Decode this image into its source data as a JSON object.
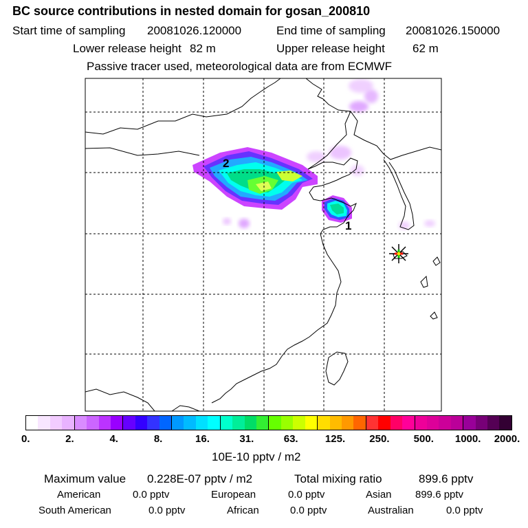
{
  "title": "BC  source contributions in nested domain for gosan_200810",
  "sampling": {
    "start_label": "Start time of sampling",
    "start_value": "20081026.120000",
    "end_label": "End time of sampling",
    "end_value": "20081026.150000"
  },
  "release": {
    "lower_label": "Lower release height",
    "lower_value": "82 m",
    "upper_label": "Upper release height",
    "upper_value": "62 m"
  },
  "tracer_note": "Passive tracer used, meteorological data are from ECMWF",
  "map": {
    "source_labels": [
      "2",
      "1"
    ],
    "receptor_marker": "asterisk-star"
  },
  "colorbar": {
    "tick_labels": [
      "0.",
      "2.",
      "4.",
      "8.",
      "16.",
      "31.",
      "63.",
      "125.",
      "250.",
      "500.",
      "1000.",
      "2000."
    ],
    "colors": [
      "#ffffff",
      "#f8e6ff",
      "#f2ccff",
      "#e9b3ff",
      "#d98cff",
      "#cc66ff",
      "#bb33ff",
      "#9900ff",
      "#6600ff",
      "#3300ff",
      "#3333ff",
      "#0066ff",
      "#0099ff",
      "#00bbff",
      "#00e0ff",
      "#00ffff",
      "#00ffcc",
      "#00ee99",
      "#00dd66",
      "#33ee33",
      "#66ff00",
      "#99ff00",
      "#ccff00",
      "#ffff00",
      "#ffdd00",
      "#ffbb00",
      "#ff9900",
      "#ff6600",
      "#ff3333",
      "#ff0000",
      "#ff0066",
      "#ff0099",
      "#ee0099",
      "#dd0099",
      "#cc0099",
      "#bb0099",
      "#990099",
      "#770077",
      "#550055",
      "#330033"
    ],
    "unit": "10E-10 pptv / m2"
  },
  "summary": {
    "max_label": "Maximum value",
    "max_value": "0.228E-07 pptv / m2",
    "total_label": "Total mixing ratio",
    "total_value": "899.6 pptv",
    "regions": [
      {
        "name": "American",
        "value": "0.0 pptv"
      },
      {
        "name": "European",
        "value": "0.0 pptv"
      },
      {
        "name": "Asian",
        "value": "899.6 pptv"
      },
      {
        "name": "South American",
        "value": "0.0 pptv"
      },
      {
        "name": "African",
        "value": "0.0 pptv"
      },
      {
        "name": "Australian",
        "value": "0.0 pptv"
      }
    ]
  }
}
